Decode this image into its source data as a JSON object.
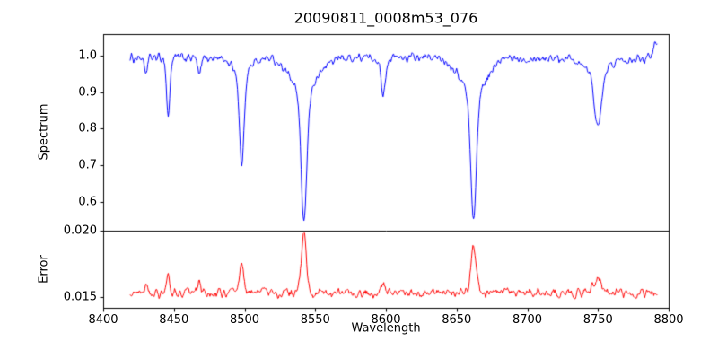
{
  "chart_data": {
    "type": "line",
    "title": "20090811_0008m53_076",
    "xlabel": "Wavelength",
    "xlim": [
      8400,
      8800
    ],
    "xticks": [
      8400,
      8450,
      8500,
      8550,
      8600,
      8650,
      8700,
      8750,
      8800
    ],
    "sample_start": 8419,
    "sample_end": 8792,
    "sample_step": 0.5,
    "noise_seed": 1234,
    "grid": false,
    "legend": "none",
    "panels": [
      {
        "name": "spectrum",
        "ylabel": "Spectrum",
        "ylim": [
          0.52,
          1.06
        ],
        "yticks": [
          1.0,
          0.9,
          0.8,
          0.7,
          0.6
        ],
        "ytick_labels": [
          "1.0",
          "0.9",
          "0.8",
          "0.7",
          "0.6"
        ],
        "line_color": "#0000ff",
        "continuum": 0.995,
        "noise_amplitude": 0.018,
        "features": [
          {
            "center": 8430,
            "depth": 0.05,
            "sigma": 1.0
          },
          {
            "center": 8446,
            "depth": 0.16,
            "sigma": 1.2
          },
          {
            "center": 8468,
            "depth": 0.05,
            "sigma": 1.2
          },
          {
            "center": 8498,
            "depth": 0.25,
            "sigma": 1.6
          },
          {
            "center": 8498,
            "depth": 0.045,
            "sigma": 6.0
          },
          {
            "center": 8542,
            "depth": 0.35,
            "sigma": 2.0
          },
          {
            "center": 8542,
            "depth": 0.1,
            "sigma": 9.0
          },
          {
            "center": 8598,
            "depth": 0.1,
            "sigma": 1.6
          },
          {
            "center": 8662,
            "depth": 0.34,
            "sigma": 2.0
          },
          {
            "center": 8662,
            "depth": 0.1,
            "sigma": 9.0
          },
          {
            "center": 8750,
            "depth": 0.15,
            "sigma": 2.5
          },
          {
            "center": 8750,
            "depth": 0.04,
            "sigma": 8.0
          }
        ],
        "edge_rise": {
          "center": 8792,
          "height": 0.05,
          "sigma": 2.5
        }
      },
      {
        "name": "error",
        "ylabel": "Error",
        "ylim": [
          0.0142,
          0.02
        ],
        "yticks": [
          0.02,
          0.015
        ],
        "ytick_labels": [
          "0.020",
          "0.015"
        ],
        "line_color": "#ff0000",
        "baseline": 0.0153,
        "noise_amplitude": 0.0005,
        "features": [
          {
            "center": 8430,
            "height": 0.0008,
            "sigma": 1.0
          },
          {
            "center": 8446,
            "height": 0.0013,
            "sigma": 1.0
          },
          {
            "center": 8468,
            "height": 0.0006,
            "sigma": 1.2
          },
          {
            "center": 8498,
            "height": 0.0022,
            "sigma": 1.5
          },
          {
            "center": 8512,
            "height": 0.0005,
            "sigma": 1.5
          },
          {
            "center": 8542,
            "height": 0.0045,
            "sigma": 1.8
          },
          {
            "center": 8598,
            "height": 0.0008,
            "sigma": 2.0
          },
          {
            "center": 8662,
            "height": 0.0037,
            "sigma": 1.8
          },
          {
            "center": 8750,
            "height": 0.0012,
            "sigma": 3.0
          }
        ]
      }
    ]
  }
}
